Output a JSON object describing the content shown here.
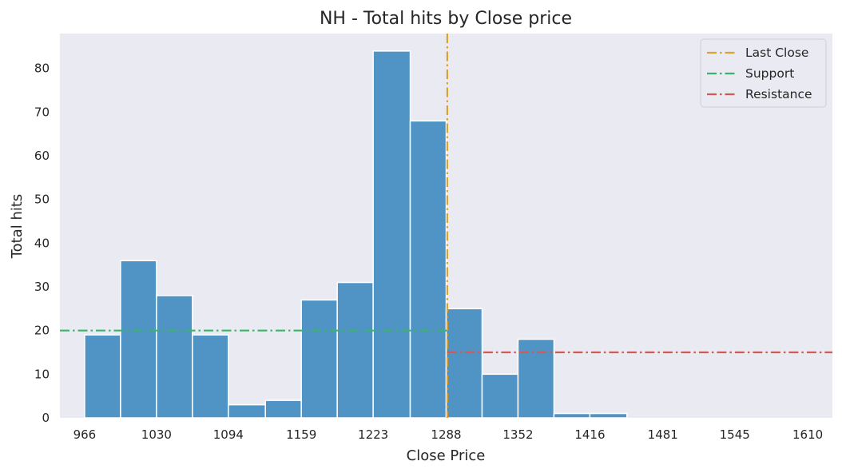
{
  "chart_data": {
    "type": "bar",
    "title": "NH - Total hits by Close price",
    "xlabel": "Close Price",
    "ylabel": "Total hits",
    "xlim": [
      944,
      1632
    ],
    "ylim": [
      0,
      88
    ],
    "x_ticks": [
      966,
      1030,
      1094,
      1159,
      1223,
      1288,
      1352,
      1416,
      1481,
      1545,
      1610
    ],
    "y_ticks": [
      0,
      10,
      20,
      30,
      40,
      50,
      60,
      70,
      80
    ],
    "grid": false,
    "bins": [
      {
        "start": 966,
        "end": 998,
        "value": 19
      },
      {
        "start": 998,
        "end": 1030,
        "value": 36
      },
      {
        "start": 1030,
        "end": 1062,
        "value": 28
      },
      {
        "start": 1062,
        "end": 1094,
        "value": 19
      },
      {
        "start": 1094,
        "end": 1127,
        "value": 3
      },
      {
        "start": 1127,
        "end": 1159,
        "value": 4
      },
      {
        "start": 1159,
        "end": 1191,
        "value": 27
      },
      {
        "start": 1191,
        "end": 1223,
        "value": 31
      },
      {
        "start": 1223,
        "end": 1256,
        "value": 84
      },
      {
        "start": 1256,
        "end": 1288,
        "value": 68
      },
      {
        "start": 1288,
        "end": 1320,
        "value": 25
      },
      {
        "start": 1320,
        "end": 1352,
        "value": 10
      },
      {
        "start": 1352,
        "end": 1384,
        "value": 18
      },
      {
        "start": 1384,
        "end": 1416,
        "value": 1
      },
      {
        "start": 1416,
        "end": 1449,
        "value": 1
      },
      {
        "start": 1449,
        "end": 1481,
        "value": 0
      },
      {
        "start": 1481,
        "end": 1513,
        "value": 0
      },
      {
        "start": 1513,
        "end": 1545,
        "value": 0
      },
      {
        "start": 1545,
        "end": 1578,
        "value": 0
      },
      {
        "start": 1578,
        "end": 1610,
        "value": 0
      }
    ],
    "bar_color": "#4f94c4",
    "background_color": "#eaeaf2",
    "lines": [
      {
        "name": "Last Close",
        "orientation": "vertical",
        "x": 1289,
        "color": "#daa22f"
      },
      {
        "name": "Support",
        "orientation": "horizontal",
        "y": 20,
        "x_from": 944,
        "x_to": 1289,
        "color": "#3bb36a"
      },
      {
        "name": "Resistance",
        "orientation": "horizontal",
        "y": 15,
        "x_from": 1289,
        "x_to": 1632,
        "color": "#d15a56"
      }
    ],
    "legend_position": "top-right"
  }
}
